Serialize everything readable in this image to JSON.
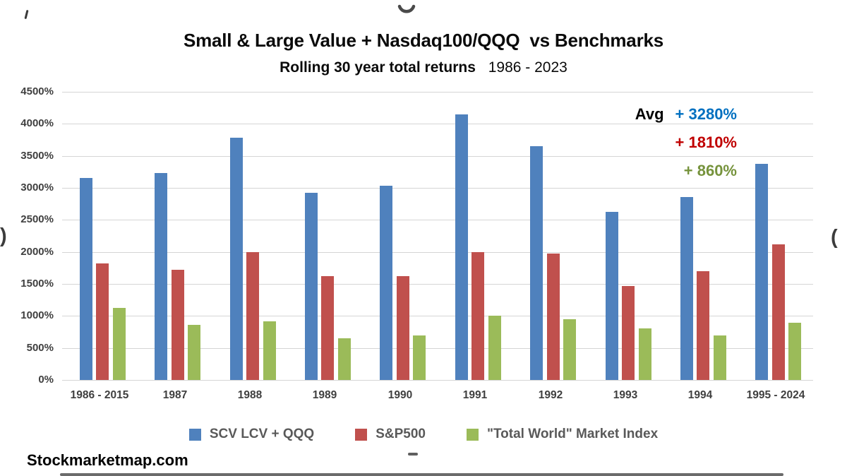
{
  "chart_data": {
    "type": "bar",
    "title": "Small & Large Value + Nasdaq100/QQQ  vs Benchmarks",
    "subtitle_bold": "Rolling 30 year total returns",
    "subtitle_years": "1986 - 2023",
    "categories": [
      "1986 - 2015",
      "1987",
      "1988",
      "1989",
      "1990",
      "1991",
      "1992",
      "1993",
      "1994",
      "1995 - 2024"
    ],
    "series": [
      {
        "name": "SCV LCV + QQQ",
        "color": "#4F81BD",
        "values": [
          3150,
          3230,
          3780,
          2920,
          3030,
          4150,
          3650,
          2620,
          2860,
          3380
        ]
      },
      {
        "name": "S&P500",
        "color": "#C0504D",
        "values": [
          1820,
          1720,
          2000,
          1620,
          1620,
          2000,
          1970,
          1470,
          1700,
          2120
        ]
      },
      {
        "name": "\"Total World\" Market Index",
        "color": "#9BBB59",
        "values": [
          1130,
          860,
          920,
          650,
          700,
          1000,
          950,
          800,
          690,
          890
        ]
      }
    ],
    "y_ticks": [
      "4500%",
      "4000%",
      "3500%",
      "3000%",
      "2500%",
      "2000%",
      "1500%",
      "1000%",
      "500%",
      "0%"
    ],
    "ylim": [
      0,
      4500
    ],
    "grid": true,
    "legend_position": "bottom",
    "avg_annotation": {
      "label": "Avg",
      "rows": [
        {
          "series": "SCV LCV + QQQ",
          "value": "+ 3280%",
          "color": "#0070C0"
        },
        {
          "series": "S&P500",
          "value": "+ 1810%",
          "color": "#C00000"
        },
        {
          "series": "\"Total World\" Market Index",
          "value": "+ 860%",
          "color": "#76933C"
        }
      ]
    }
  },
  "footer": {
    "watermark": "Stockmarketmap.com"
  },
  "artifacts": {
    "top_arc_icon": "half-circle-smile",
    "left_glyph": ")",
    "right_glyph": "(",
    "dash_glyph": "-"
  }
}
